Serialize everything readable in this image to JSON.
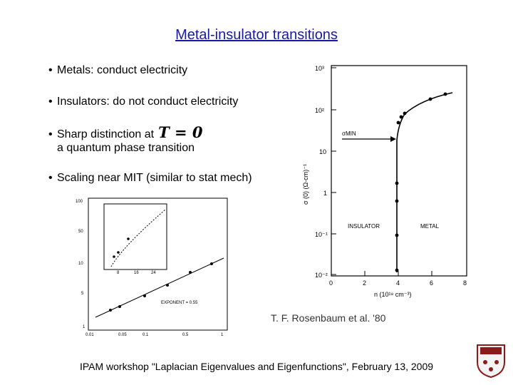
{
  "title": "Metal-insulator transitions",
  "bullets": {
    "b1": "Metals: conduct electricity",
    "b2": "Insulators: do not conduct electricity",
    "b3": "Sharp distinction at",
    "b3_math": "T = 0",
    "b3_cont": "a quantum phase transition",
    "b4": "Scaling near MIT (similar to stat mech)"
  },
  "credit": "T. F. Rosenbaum et al. '80",
  "footer": "IPAM workshop \"Laplacian Eigenvalues and Eigenfunctions\", February 13, 2009",
  "right_plot": {
    "y_ticks": [
      "10³",
      "10²",
      "10",
      "1",
      "10⁻¹",
      "10⁻²"
    ],
    "x_ticks": [
      "0",
      "2",
      "4",
      "6",
      "8"
    ],
    "ylabel": "σ (0) (Ω-cm)⁻¹",
    "xlabel": "n (10¹⁸ cm⁻³)",
    "sigma_label": "σMIN",
    "insulator": "INSULATOR",
    "metal": "METAL"
  },
  "left_plot": {
    "y_ticks": [
      "100",
      "50",
      "10",
      "5",
      "1"
    ],
    "x_ticks": [
      "0.01",
      "0.05",
      "0.1",
      "0.5",
      "1"
    ],
    "exponent": "EXPONENT = 0.55",
    "inset_x_ticks": [
      "8",
      "16",
      "24"
    ]
  },
  "colors": {
    "title": "#1a1aa0",
    "logo": "#8b1a1a"
  }
}
